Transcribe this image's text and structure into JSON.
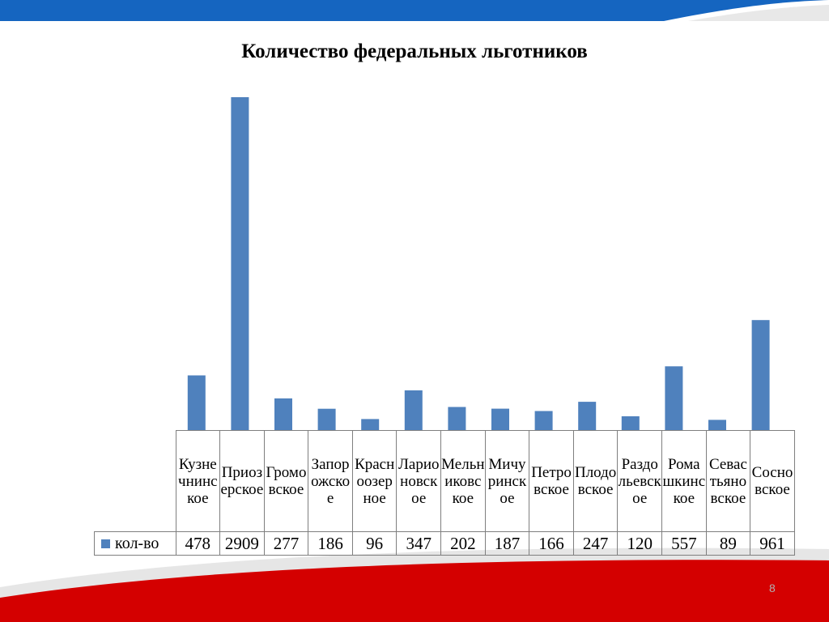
{
  "slide": {
    "page_number": "8"
  },
  "colors": {
    "bar": "#4f81bd",
    "top_band": "#1565c0",
    "bottom_band": "#d40000",
    "grid": "#7f7f7f"
  },
  "chart_data": {
    "type": "bar",
    "title": "Количество федеральных льготников",
    "categories": [
      "Кузнечнинское",
      "Приозерское",
      "Громовское",
      "Запорожское",
      "Красноозерное",
      "Ларионовское",
      "Мельниковское",
      "Мичуринское",
      "Петровское",
      "Плодовское",
      "Раздольевское",
      "Ромашкинское",
      "Севастьяновское",
      "Сосновское"
    ],
    "series": [
      {
        "name": "кол-во",
        "values": [
          478,
          2909,
          277,
          186,
          96,
          347,
          202,
          187,
          166,
          247,
          120,
          557,
          89,
          961
        ]
      }
    ],
    "ylim": [
      0,
      2909
    ],
    "grid": false,
    "legend": "left-of-data-table"
  }
}
